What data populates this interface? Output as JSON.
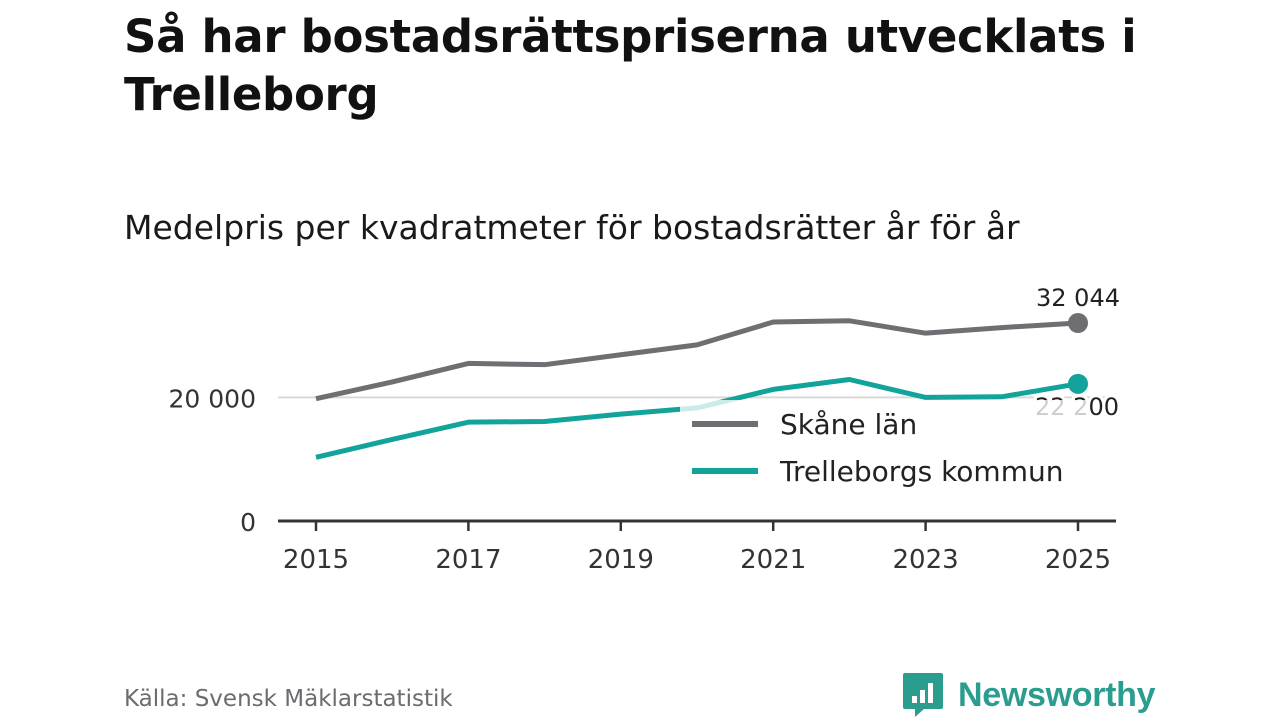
{
  "title": "Så har bostadsrättspriserna utvecklats i Trelleborg",
  "subtitle": "Medelpris per kvadratmeter för bostadsrätter år för år",
  "source": "Källa: Svensk Mäklarstatistik",
  "brand": "Newsworthy",
  "colors": {
    "skane": "#6e6e73",
    "trelleborg": "#12a39a",
    "axis": "#333333",
    "grid": "#d9d9d9",
    "brand": "#2a9d8f"
  },
  "chart_data": {
    "type": "line",
    "title": "Medelpris per kvadratmeter för bostadsrätter år för år",
    "xlabel": "",
    "ylabel": "",
    "x": [
      2015,
      2016,
      2017,
      2018,
      2019,
      2020,
      2021,
      2022,
      2023,
      2024,
      2025
    ],
    "xlim": [
      2014.5,
      2025.5
    ],
    "ylim": [
      0,
      32044
    ],
    "y_ticks": [
      {
        "value": 0,
        "label": "0"
      },
      {
        "value": 20000,
        "label": "20 000"
      }
    ],
    "x_ticks": [
      {
        "value": 2015,
        "label": "2015"
      },
      {
        "value": 2017,
        "label": "2017"
      },
      {
        "value": 2019,
        "label": "2019"
      },
      {
        "value": 2021,
        "label": "2021"
      },
      {
        "value": 2023,
        "label": "2023"
      },
      {
        "value": 2025,
        "label": "2025"
      }
    ],
    "grid": "horizontal",
    "legend_position": "center-right",
    "series": [
      {
        "key": "skane",
        "name": "Skåne län",
        "values": [
          19800,
          22500,
          25500,
          25300,
          26900,
          28500,
          32200,
          32400,
          30400,
          31300,
          32044
        ],
        "end_label": "32 044"
      },
      {
        "key": "trelleborg",
        "name": "Trelleborgs kommun",
        "values": [
          10300,
          13200,
          16000,
          16100,
          17300,
          18300,
          21300,
          22900,
          20000,
          20100,
          22200
        ],
        "end_label": "22 200"
      }
    ]
  }
}
